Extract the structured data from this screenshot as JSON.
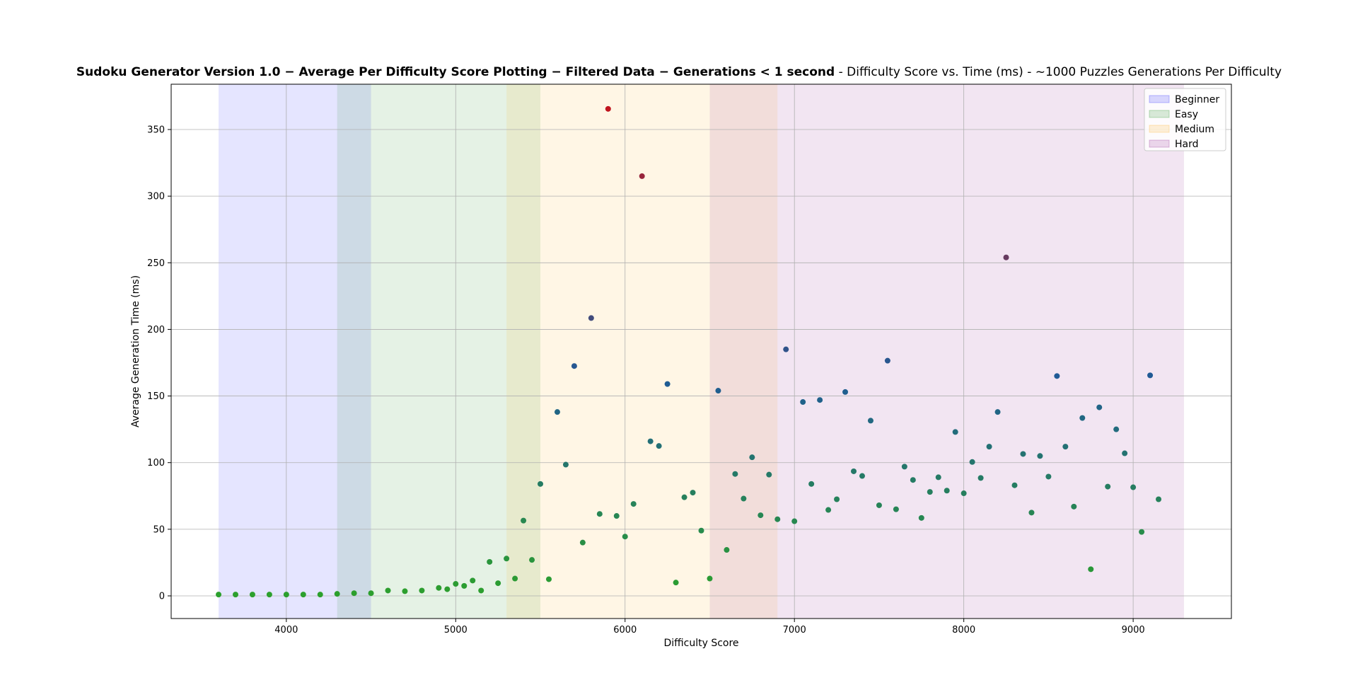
{
  "chart_data": {
    "type": "scatter",
    "title_bold": "Sudoku Generator Version 1.0  − Average Per Difficulty Score Plotting  − Filtered Data  − Generations  <  1 second",
    "title_rest": " - Difficulty Score vs. Time (ms) - ~1000 Puzzles Generations Per Difficulty",
    "xlabel": "Difficulty Score",
    "ylabel": "Average Generation Time (ms)",
    "xlim": [
      3320,
      9580
    ],
    "ylim": [
      -17,
      384
    ],
    "xticks": [
      4000,
      5000,
      6000,
      7000,
      8000,
      9000
    ],
    "yticks": [
      0,
      50,
      100,
      150,
      200,
      250,
      300,
      350
    ],
    "grid": true,
    "legend_position": "top-right",
    "bands": [
      {
        "name": "Beginner",
        "x0": 3600,
        "x1": 4500,
        "color": "#0000ff",
        "opacity": 0.1
      },
      {
        "name": "Easy",
        "x0": 4300,
        "x1": 5500,
        "color": "#008000",
        "opacity": 0.1
      },
      {
        "name": "Medium",
        "x0": 5300,
        "x1": 6900,
        "color": "#ffa500",
        "opacity": 0.1
      },
      {
        "name": "Hard",
        "x0": 6500,
        "x1": 9300,
        "color": "#800080",
        "opacity": 0.1
      }
    ],
    "color_scale": {
      "low": "#2ca02c",
      "mid": "#1f5a96",
      "high": "#c0141e",
      "max": 365
    },
    "points": [
      [
        3600,
        1
      ],
      [
        3700,
        1
      ],
      [
        3800,
        1
      ],
      [
        3900,
        1
      ],
      [
        4000,
        1
      ],
      [
        4100,
        1
      ],
      [
        4200,
        1
      ],
      [
        4300,
        1.5
      ],
      [
        4400,
        2
      ],
      [
        4500,
        2
      ],
      [
        4600,
        4
      ],
      [
        4700,
        3.5
      ],
      [
        4800,
        4
      ],
      [
        4900,
        6
      ],
      [
        4950,
        5
      ],
      [
        5000,
        9
      ],
      [
        5050,
        7.5
      ],
      [
        5100,
        11.5
      ],
      [
        5150,
        4
      ],
      [
        5200,
        25.5
      ],
      [
        5250,
        9.5
      ],
      [
        5300,
        28
      ],
      [
        5350,
        13
      ],
      [
        5400,
        56.5
      ],
      [
        5450,
        27
      ],
      [
        5500,
        84
      ],
      [
        5550,
        12.5
      ],
      [
        5600,
        138
      ],
      [
        5650,
        98.5
      ],
      [
        5700,
        172.5
      ],
      [
        5750,
        40
      ],
      [
        5800,
        208.5
      ],
      [
        5850,
        61.5
      ],
      [
        5900,
        365.5
      ],
      [
        5950,
        60
      ],
      [
        6000,
        44.5
      ],
      [
        6050,
        69
      ],
      [
        6100,
        315
      ],
      [
        6150,
        116
      ],
      [
        6200,
        112.5
      ],
      [
        6250,
        159
      ],
      [
        6300,
        10
      ],
      [
        6350,
        74
      ],
      [
        6400,
        77.5
      ],
      [
        6450,
        49
      ],
      [
        6500,
        13
      ],
      [
        6550,
        154
      ],
      [
        6600,
        34.5
      ],
      [
        6650,
        91.5
      ],
      [
        6700,
        73
      ],
      [
        6750,
        104
      ],
      [
        6800,
        60.5
      ],
      [
        6850,
        91
      ],
      [
        6900,
        57.5
      ],
      [
        6950,
        185
      ],
      [
        7000,
        56
      ],
      [
        7050,
        145.5
      ],
      [
        7100,
        84
      ],
      [
        7150,
        147
      ],
      [
        7200,
        64.5
      ],
      [
        7250,
        72.5
      ],
      [
        7300,
        153
      ],
      [
        7350,
        93.5
      ],
      [
        7400,
        90
      ],
      [
        7450,
        131.5
      ],
      [
        7500,
        68
      ],
      [
        7550,
        176.5
      ],
      [
        7600,
        65
      ],
      [
        7650,
        97
      ],
      [
        7700,
        87
      ],
      [
        7750,
        58.5
      ],
      [
        7800,
        78
      ],
      [
        7850,
        89
      ],
      [
        7900,
        79
      ],
      [
        7950,
        123
      ],
      [
        8000,
        77
      ],
      [
        8050,
        100.5
      ],
      [
        8100,
        88.5
      ],
      [
        8150,
        112
      ],
      [
        8200,
        138
      ],
      [
        8250,
        254
      ],
      [
        8300,
        83
      ],
      [
        8350,
        106.5
      ],
      [
        8400,
        62.5
      ],
      [
        8450,
        105
      ],
      [
        8500,
        89.5
      ],
      [
        8550,
        165
      ],
      [
        8600,
        112
      ],
      [
        8650,
        67
      ],
      [
        8700,
        133.5
      ],
      [
        8750,
        20
      ],
      [
        8800,
        141.5
      ],
      [
        8850,
        82
      ],
      [
        8900,
        125
      ],
      [
        8950,
        107
      ],
      [
        9000,
        81.5
      ],
      [
        9050,
        48
      ],
      [
        9100,
        165.5
      ],
      [
        9150,
        72.5
      ]
    ]
  }
}
